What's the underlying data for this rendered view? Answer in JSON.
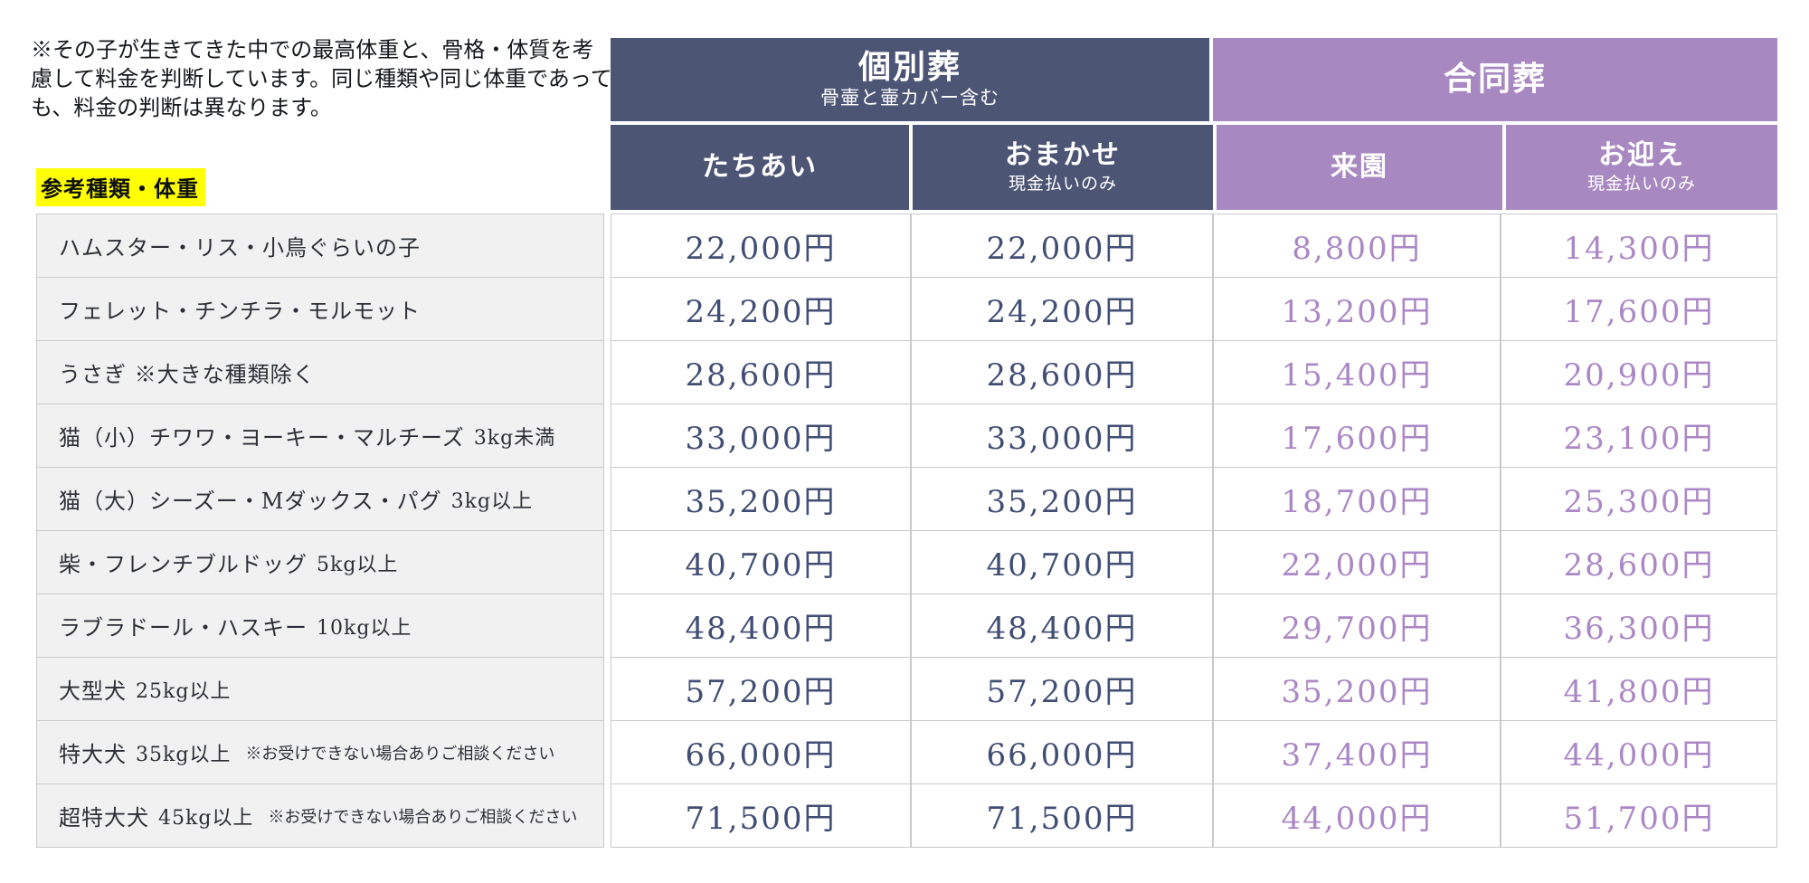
{
  "note": {
    "lines": [
      "※その子が生きてきた中での最高体重と、骨格・体質を考",
      "慮して料金を判断しています。同じ種類や同じ体重であって",
      "も、料金の判断は異なります。"
    ]
  },
  "reference_label": "参考種類・体重",
  "colors": {
    "individual_header_bg": "#4d5575",
    "group_header_bg": "#a888c0",
    "individual_price_text": "#414e74",
    "group_price_text": "#ab87c6",
    "label_cell_bg": "#f1f1f2",
    "border": "#c9c9c9",
    "highlight": "#ffff00"
  },
  "table": {
    "groups": [
      {
        "title": "個別葬",
        "subtitle": "骨壷と壷カバー含む",
        "columns": [
          {
            "title": "たちあい",
            "sub": ""
          },
          {
            "title": "おまかせ",
            "sub": "現金払いのみ"
          }
        ]
      },
      {
        "title": "合同葬",
        "subtitle": "",
        "columns": [
          {
            "title": "来園",
            "sub": ""
          },
          {
            "title": "お迎え",
            "sub": "現金払いのみ"
          }
        ]
      }
    ],
    "rows": [
      {
        "label": "ハムスター・リス・小鳥ぐらいの子",
        "weight": "",
        "note": "",
        "prices": [
          "22,000円",
          "22,000円",
          "8,800円",
          "14,300円"
        ]
      },
      {
        "label": "フェレット・チンチラ・モルモット",
        "weight": "",
        "note": "",
        "prices": [
          "24,200円",
          "24,200円",
          "13,200円",
          "17,600円"
        ]
      },
      {
        "label": "うさぎ ※大きな種類除く",
        "weight": "",
        "note": "",
        "prices": [
          "28,600円",
          "28,600円",
          "15,400円",
          "20,900円"
        ]
      },
      {
        "label": "猫（小）チワワ・ヨーキー・マルチーズ",
        "weight": "3kg未満",
        "note": "",
        "prices": [
          "33,000円",
          "33,000円",
          "17,600円",
          "23,100円"
        ]
      },
      {
        "label": "猫（大）シーズー・Mダックス・パグ",
        "weight": "3kg以上",
        "note": "",
        "prices": [
          "35,200円",
          "35,200円",
          "18,700円",
          "25,300円"
        ]
      },
      {
        "label": "柴・フレンチブルドッグ",
        "weight": "5kg以上",
        "note": "",
        "prices": [
          "40,700円",
          "40,700円",
          "22,000円",
          "28,600円"
        ]
      },
      {
        "label": "ラブラドール・ハスキー",
        "weight": "10kg以上",
        "note": "",
        "prices": [
          "48,400円",
          "48,400円",
          "29,700円",
          "36,300円"
        ]
      },
      {
        "label": "大型犬",
        "weight": "25kg以上",
        "note": "",
        "prices": [
          "57,200円",
          "57,200円",
          "35,200円",
          "41,800円"
        ]
      },
      {
        "label": "特大犬",
        "weight": "35kg以上",
        "note": "※お受けできない場合ありご相談ください",
        "prices": [
          "66,000円",
          "66,000円",
          "37,400円",
          "44,000円"
        ]
      },
      {
        "label": "超特大犬",
        "weight": "45kg以上",
        "note": "※お受けできない場合ありご相談ください",
        "prices": [
          "71,500円",
          "71,500円",
          "44,000円",
          "51,700円"
        ]
      }
    ]
  }
}
